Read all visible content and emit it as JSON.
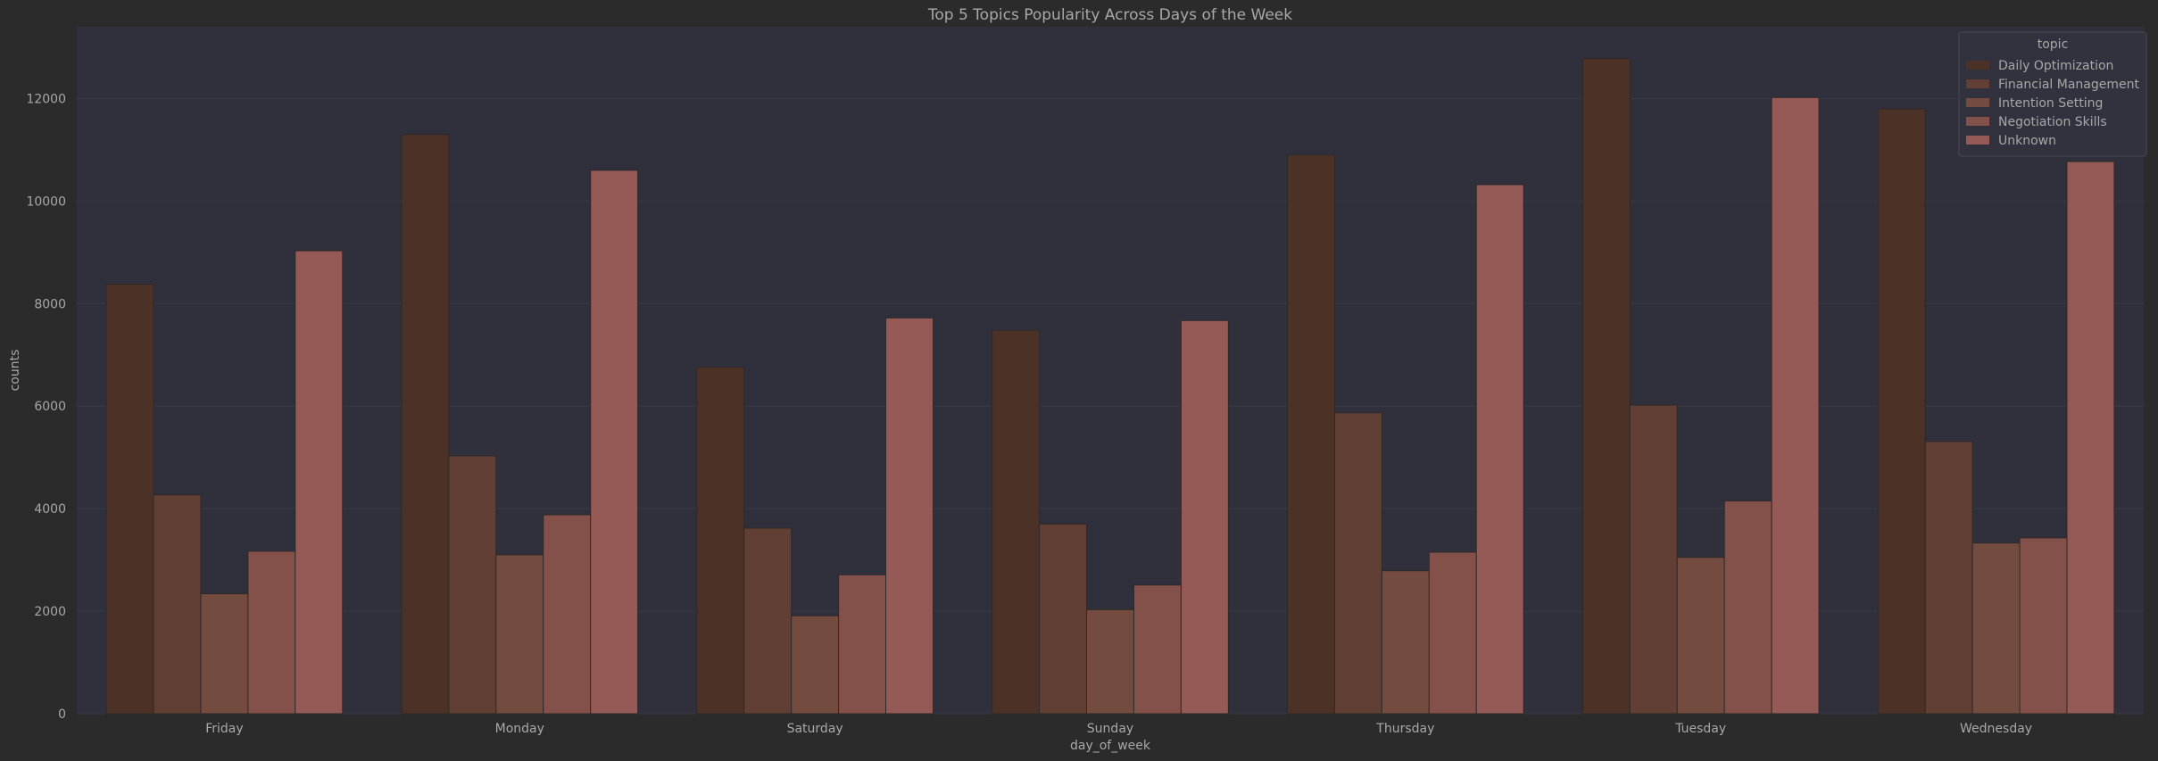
{
  "chart_data": {
    "type": "bar",
    "title": "Top 5 Topics Popularity Across Days of the Week",
    "xlabel": "day_of_week",
    "ylabel": "counts",
    "categories": [
      "Friday",
      "Monday",
      "Saturday",
      "Sunday",
      "Thursday",
      "Tuesday",
      "Wednesday"
    ],
    "ylim": [
      0,
      13400
    ],
    "yticks": [
      0,
      2000,
      4000,
      6000,
      8000,
      10000,
      12000
    ],
    "grid": true,
    "legend": {
      "title": "topic",
      "placement": "top-right"
    },
    "series": [
      {
        "name": "Daily Optimization",
        "color": "#4c3127",
        "values": [
          8380,
          11300,
          6760,
          7480,
          10900,
          12780,
          11800
        ]
      },
      {
        "name": "Financial Management",
        "color": "#623f34",
        "values": [
          4270,
          5030,
          3620,
          3700,
          5870,
          6020,
          5310
        ]
      },
      {
        "name": "Intention Setting",
        "color": "#744b3f",
        "values": [
          2340,
          3100,
          1910,
          2030,
          2790,
          3050,
          3330
        ]
      },
      {
        "name": "Negotiation Skills",
        "color": "#84514a",
        "values": [
          3170,
          3880,
          2710,
          2510,
          3150,
          4150,
          3430
        ]
      },
      {
        "name": "Unknown",
        "color": "#955a56",
        "values": [
          9030,
          10600,
          7720,
          7670,
          10320,
          12020,
          10770
        ]
      }
    ]
  },
  "colors": {
    "page_background": "#2b2b2b",
    "plot_background": "#2f303c",
    "text": "#a8a8a8",
    "grid": "#383a45"
  }
}
